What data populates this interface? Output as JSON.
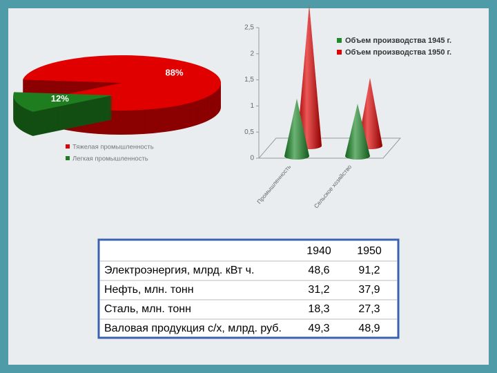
{
  "chart_data": [
    {
      "type": "pie",
      "categories": [
        "Тяжелая промышленность",
        "Легкая промышленность"
      ],
      "values": [
        88,
        12
      ],
      "value_labels": [
        "88%",
        "12%"
      ],
      "colors": [
        "#e00000",
        "#1e7d1e"
      ]
    },
    {
      "type": "cone",
      "categories": [
        "Промышленность",
        "Сельское хозяйство"
      ],
      "series": [
        {
          "name": "Объем производства 1945 г.",
          "color": "#1e8a2a",
          "values": [
            1.1,
            1.0
          ]
        },
        {
          "name": "Объем производства 1950 г.",
          "color": "#e00000",
          "values": [
            2.7,
            1.3
          ]
        }
      ],
      "ylim": [
        0,
        2.5
      ],
      "yticks": [
        0,
        {
          "value": 0.5,
          "label": "0,5"
        },
        1,
        {
          "value": 1.5,
          "label": "1,5"
        },
        2,
        {
          "value": 2.5,
          "label": "2,5"
        }
      ]
    }
  ],
  "table": {
    "columns": [
      "1940",
      "1950"
    ],
    "rows": [
      [
        "Электроэнергия, млрд. кВт ч.",
        "48,6",
        "91,2"
      ],
      [
        "Нефть, млн. тонн",
        "31,2",
        "37,9"
      ],
      [
        "Сталь, млн. тонн",
        "18,3",
        "27,3"
      ],
      [
        "Валовая продукция с/х, млрд. руб.",
        "49,3",
        "48,9"
      ]
    ]
  }
}
